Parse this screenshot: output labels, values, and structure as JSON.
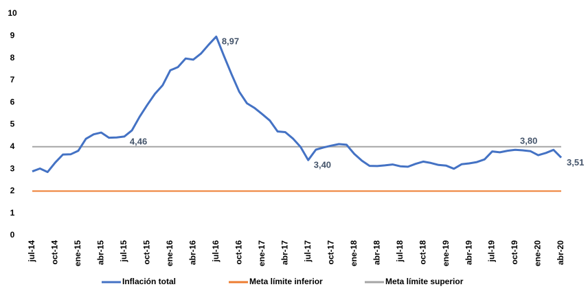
{
  "chart_data": {
    "type": "line",
    "categories": [
      "jul-14",
      null,
      null,
      "oct-14",
      null,
      null,
      "ene-15",
      null,
      null,
      "abr-15",
      null,
      null,
      "jul-15",
      null,
      null,
      "oct-15",
      null,
      null,
      "ene-16",
      null,
      null,
      "abr-16",
      null,
      null,
      "jul-16",
      null,
      null,
      "oct-16",
      null,
      null,
      "ene-17",
      null,
      null,
      "abr-17",
      null,
      null,
      "jul-17",
      null,
      null,
      "oct-17",
      null,
      null,
      "ene-18",
      null,
      null,
      "abr-18",
      null,
      null,
      "jul-18",
      null,
      null,
      "oct-18",
      null,
      null,
      "ene-19",
      null,
      null,
      "abr-19",
      null,
      null,
      "jul-19",
      null,
      null,
      "oct-19",
      null,
      null,
      "ene-20",
      null,
      null,
      "abr-20"
    ],
    "series": [
      {
        "name": "Inflación total",
        "color": "#4472c4",
        "values": [
          2.89,
          3.02,
          2.86,
          3.29,
          3.65,
          3.66,
          3.82,
          4.36,
          4.56,
          4.64,
          4.41,
          4.42,
          4.46,
          4.74,
          5.35,
          5.89,
          6.39,
          6.77,
          7.45,
          7.59,
          7.98,
          7.93,
          8.2,
          8.6,
          8.97,
          8.1,
          7.27,
          6.48,
          5.96,
          5.75,
          5.47,
          5.18,
          4.69,
          4.66,
          4.37,
          3.99,
          3.4,
          3.87,
          3.97,
          4.05,
          4.12,
          4.09,
          3.68,
          3.37,
          3.14,
          3.13,
          3.16,
          3.2,
          3.12,
          3.1,
          3.23,
          3.33,
          3.27,
          3.18,
          3.15,
          3.01,
          3.21,
          3.25,
          3.31,
          3.43,
          3.79,
          3.75,
          3.82,
          3.86,
          3.84,
          3.8,
          3.62,
          3.72,
          3.86,
          3.51
        ],
        "value_labels": [
          null,
          null,
          null,
          null,
          null,
          null,
          null,
          null,
          null,
          null,
          null,
          null,
          "4,46",
          null,
          null,
          null,
          null,
          null,
          null,
          null,
          null,
          null,
          null,
          null,
          "8,97",
          null,
          null,
          null,
          null,
          null,
          null,
          null,
          null,
          null,
          null,
          null,
          "3,40",
          null,
          null,
          null,
          null,
          null,
          null,
          null,
          null,
          null,
          null,
          null,
          null,
          null,
          null,
          null,
          null,
          null,
          null,
          null,
          null,
          null,
          null,
          null,
          null,
          null,
          null,
          null,
          null,
          "3,80",
          null,
          null,
          null,
          "3,51"
        ]
      },
      {
        "name": "Meta límite inferior",
        "color": "#ed7d31",
        "values": [
          2,
          2,
          2,
          2,
          2,
          2,
          2,
          2,
          2,
          2,
          2,
          2,
          2,
          2,
          2,
          2,
          2,
          2,
          2,
          2,
          2,
          2,
          2,
          2,
          2,
          2,
          2,
          2,
          2,
          2,
          2,
          2,
          2,
          2,
          2,
          2,
          2,
          2,
          2,
          2,
          2,
          2,
          2,
          2,
          2,
          2,
          2,
          2,
          2,
          2,
          2,
          2,
          2,
          2,
          2,
          2,
          2,
          2,
          2,
          2,
          2,
          2,
          2,
          2,
          2,
          2,
          2,
          2,
          2,
          2
        ]
      },
      {
        "name": "Meta límite superior",
        "color": "#a5a5a5",
        "values": [
          4,
          4,
          4,
          4,
          4,
          4,
          4,
          4,
          4,
          4,
          4,
          4,
          4,
          4,
          4,
          4,
          4,
          4,
          4,
          4,
          4,
          4,
          4,
          4,
          4,
          4,
          4,
          4,
          4,
          4,
          4,
          4,
          4,
          4,
          4,
          4,
          4,
          4,
          4,
          4,
          4,
          4,
          4,
          4,
          4,
          4,
          4,
          4,
          4,
          4,
          4,
          4,
          4,
          4,
          4,
          4,
          4,
          4,
          4,
          4,
          4,
          4,
          4,
          4,
          4,
          4,
          4,
          4,
          4,
          4
        ]
      }
    ],
    "ylim": [
      0,
      10
    ],
    "yticks": [
      0,
      1,
      2,
      3,
      4,
      5,
      6,
      7,
      8,
      9,
      10
    ],
    "grid": false,
    "legend": "bottom"
  }
}
